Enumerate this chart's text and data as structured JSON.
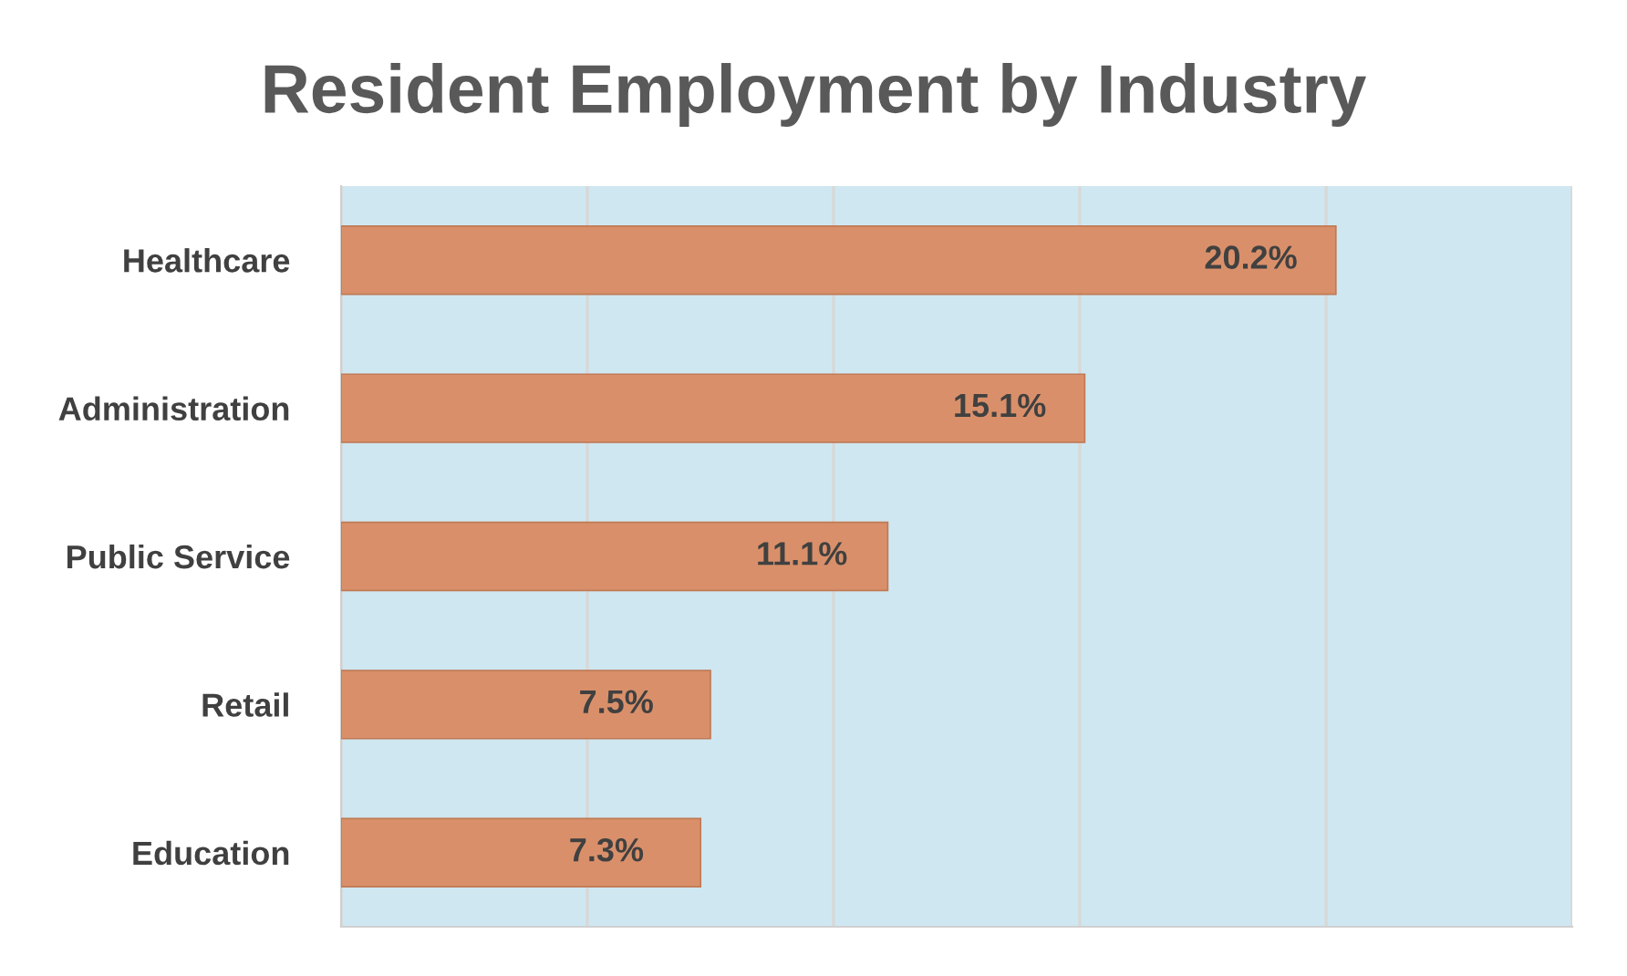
{
  "chart_data": {
    "type": "bar",
    "orientation": "horizontal",
    "title": "Resident Employment by Industry",
    "categories": [
      "Healthcare",
      "Administration",
      "Public Service",
      "Retail",
      "Education"
    ],
    "values": [
      20.2,
      15.1,
      11.1,
      7.5,
      7.3
    ],
    "value_labels": [
      "20.2%",
      "15.1%",
      "11.1%",
      "7.5%",
      "7.3%"
    ],
    "color": "#d9906a",
    "xlim": [
      0,
      25
    ],
    "xticks": [
      {
        "value": 0,
        "label": null
      },
      {
        "value": 5,
        "label": null
      },
      {
        "value": 10,
        "label": null
      },
      {
        "value": 15,
        "label": null
      },
      {
        "value": 20,
        "label": null
      },
      {
        "value": 25,
        "label": null
      }
    ],
    "grid": "x",
    "tick_labels": "y"
  }
}
